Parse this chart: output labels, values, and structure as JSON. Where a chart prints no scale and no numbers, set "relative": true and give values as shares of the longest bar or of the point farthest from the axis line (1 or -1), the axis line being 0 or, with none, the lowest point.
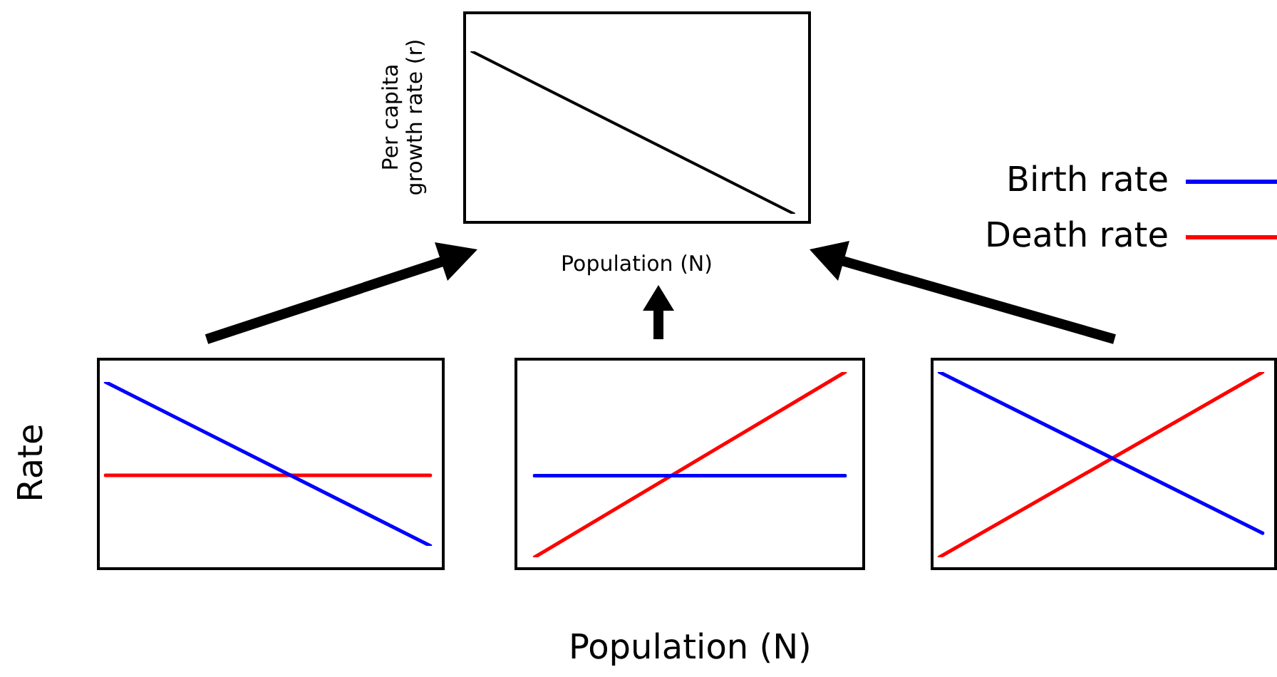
{
  "chart_data": [
    {
      "type": "line",
      "relative": true,
      "ylabel": "Per capita\ngrowth rate (r)",
      "xlabel": "Population (N)",
      "categories": [
        null,
        null
      ],
      "series": [
        {
          "color": "#000000",
          "values": [
            1,
            0
          ]
        }
      ],
      "legend": false
    },
    {
      "type": "line",
      "relative": true,
      "ylabel": "Rate",
      "categories": [
        null,
        null
      ],
      "series": [
        {
          "color": "#0000ff",
          "values": [
            1,
            0
          ]
        },
        {
          "color": "#ff0000",
          "values": [
            0.43,
            0.43
          ]
        }
      ],
      "legend": false
    },
    {
      "type": "line",
      "relative": true,
      "xlabel": "Population (N)",
      "categories": [
        null,
        null
      ],
      "series": [
        {
          "color": "#0000ff",
          "values": [
            0.44,
            0.44
          ]
        },
        {
          "color": "#ff0000",
          "values": [
            0,
            1
          ]
        }
      ],
      "legend": false
    },
    {
      "type": "line",
      "relative": true,
      "categories": [
        null,
        null
      ],
      "series": [
        {
          "name": "Birth rate",
          "color": "#0000ff",
          "values": [
            1,
            0.13
          ]
        },
        {
          "name": "Death rate",
          "color": "#ff0000",
          "values": [
            0,
            1
          ]
        }
      ],
      "legend": "top"
    }
  ]
}
